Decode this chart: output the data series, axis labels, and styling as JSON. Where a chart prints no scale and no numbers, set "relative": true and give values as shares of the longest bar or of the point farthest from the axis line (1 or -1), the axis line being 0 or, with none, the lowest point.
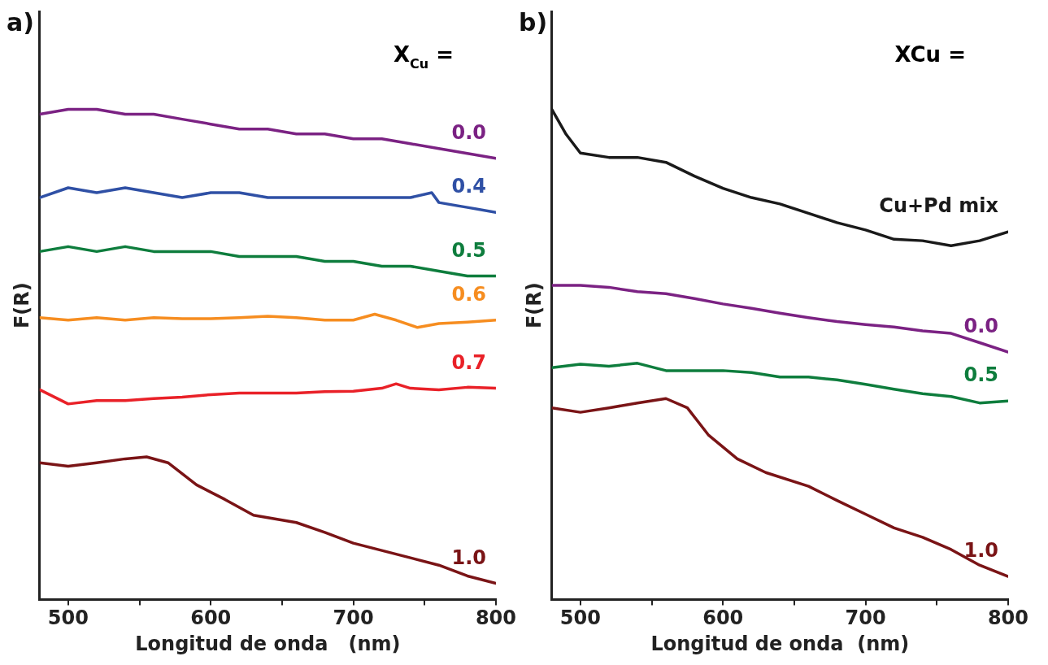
{
  "chart_data": [
    {
      "type": "line",
      "title": "a)",
      "xlabel": "Longitud de onda   (nm)",
      "ylabel": "F(R)",
      "relative": true,
      "grid": false,
      "legend": false,
      "tick_labels": "x",
      "marker": "none",
      "line_style": "solid",
      "xlim": [
        480,
        800
      ],
      "xticks": [
        500,
        {
          "value": 550,
          "label": null
        },
        600,
        {
          "value": 650,
          "label": null
        },
        700,
        {
          "value": 750,
          "label": null
        },
        800
      ],
      "annotations": [
        "X$_{Cu}$ ="
      ],
      "series": [
        {
          "name": "0.0",
          "color": "#7b2283",
          "x": [
            480,
            500,
            520,
            540,
            560,
            580,
            600,
            620,
            640,
            660,
            680,
            700,
            720,
            740,
            760,
            780,
            800
          ],
          "values": [
            0.99,
            1.0,
            1.0,
            0.99,
            0.99,
            0.98,
            0.97,
            0.96,
            0.96,
            0.95,
            0.95,
            0.94,
            0.94,
            0.93,
            0.92,
            0.91,
            0.9
          ]
        },
        {
          "name": "0.4",
          "color": "#2f50a5",
          "x": [
            480,
            500,
            520,
            540,
            560,
            580,
            600,
            620,
            640,
            660,
            680,
            700,
            720,
            740,
            755,
            760,
            780,
            800
          ],
          "values": [
            0.82,
            0.84,
            0.83,
            0.84,
            0.83,
            0.82,
            0.83,
            0.83,
            0.82,
            0.82,
            0.82,
            0.82,
            0.82,
            0.82,
            0.83,
            0.81,
            0.8,
            0.79
          ]
        },
        {
          "name": "0.5",
          "color": "#0e7d3d",
          "x": [
            480,
            500,
            520,
            540,
            560,
            580,
            600,
            620,
            640,
            660,
            680,
            700,
            720,
            740,
            760,
            780,
            800
          ],
          "values": [
            0.71,
            0.72,
            0.71,
            0.72,
            0.71,
            0.71,
            0.71,
            0.7,
            0.7,
            0.7,
            0.69,
            0.69,
            0.68,
            0.68,
            0.67,
            0.66,
            0.66
          ]
        },
        {
          "name": "0.6",
          "color": "#f68d20",
          "x": [
            480,
            500,
            520,
            540,
            560,
            580,
            600,
            620,
            640,
            660,
            680,
            700,
            715,
            730,
            745,
            760,
            780,
            800
          ],
          "values": [
            0.575,
            0.57,
            0.575,
            0.57,
            0.575,
            0.573,
            0.573,
            0.575,
            0.578,
            0.575,
            0.57,
            0.57,
            0.582,
            0.57,
            0.555,
            0.563,
            0.566,
            0.57
          ]
        },
        {
          "name": "0.7",
          "color": "#e92128",
          "x": [
            480,
            500,
            520,
            540,
            560,
            580,
            600,
            620,
            640,
            660,
            680,
            700,
            720,
            730,
            740,
            760,
            780,
            800
          ],
          "values": [
            0.428,
            0.399,
            0.406,
            0.406,
            0.41,
            0.413,
            0.418,
            0.421,
            0.421,
            0.421,
            0.424,
            0.425,
            0.431,
            0.44,
            0.431,
            0.428,
            0.433,
            0.431
          ]
        },
        {
          "name": "1.0",
          "color": "#7a1416",
          "x": [
            480,
            500,
            520,
            540,
            555,
            570,
            590,
            610,
            630,
            660,
            680,
            700,
            720,
            740,
            760,
            780,
            800
          ],
          "values": [
            0.279,
            0.272,
            0.279,
            0.287,
            0.291,
            0.279,
            0.234,
            0.204,
            0.172,
            0.157,
            0.137,
            0.115,
            0.1,
            0.085,
            0.07,
            0.048,
            0.033
          ]
        }
      ]
    },
    {
      "type": "line",
      "title": "b)",
      "xlabel": "Longitud de onda  (nm)",
      "ylabel": "F(R)",
      "relative": true,
      "grid": false,
      "legend": false,
      "tick_labels": "x",
      "marker": "none",
      "line_style": "solid",
      "xlim": [
        480,
        800
      ],
      "xticks": [
        500,
        {
          "value": 550,
          "label": null
        },
        600,
        {
          "value": 650,
          "label": null
        },
        700,
        {
          "value": 750,
          "label": null
        },
        800
      ],
      "annotations": [
        "XCu ="
      ],
      "series": [
        {
          "name": "Cu+Pd mix",
          "color": "#1a1a1a",
          "x": [
            480,
            490,
            500,
            520,
            540,
            560,
            580,
            600,
            620,
            640,
            660,
            680,
            700,
            720,
            740,
            760,
            780,
            800
          ],
          "values": [
            1.0,
            0.949,
            0.911,
            0.902,
            0.902,
            0.892,
            0.864,
            0.839,
            0.82,
            0.807,
            0.788,
            0.769,
            0.754,
            0.735,
            0.732,
            0.722,
            0.732,
            0.75
          ]
        },
        {
          "name": "0.0",
          "color": "#7b2283",
          "x": [
            480,
            500,
            520,
            540,
            560,
            580,
            600,
            620,
            640,
            660,
            680,
            700,
            720,
            740,
            760,
            780,
            800
          ],
          "values": [
            0.641,
            0.641,
            0.637,
            0.628,
            0.624,
            0.614,
            0.603,
            0.594,
            0.584,
            0.575,
            0.567,
            0.561,
            0.556,
            0.548,
            0.543,
            0.524,
            0.505
          ]
        },
        {
          "name": "0.5",
          "color": "#0e7d3d",
          "x": [
            480,
            500,
            520,
            540,
            560,
            580,
            600,
            620,
            640,
            660,
            680,
            700,
            720,
            740,
            760,
            780,
            800
          ],
          "values": [
            0.473,
            0.48,
            0.476,
            0.482,
            0.467,
            0.467,
            0.467,
            0.463,
            0.454,
            0.454,
            0.448,
            0.439,
            0.429,
            0.42,
            0.414,
            0.401,
            0.405
          ]
        },
        {
          "name": "1.0",
          "color": "#7a1416",
          "x": [
            480,
            500,
            520,
            540,
            560,
            575,
            590,
            610,
            630,
            660,
            680,
            700,
            720,
            740,
            760,
            780,
            800
          ],
          "values": [
            0.391,
            0.382,
            0.391,
            0.401,
            0.41,
            0.391,
            0.335,
            0.287,
            0.259,
            0.231,
            0.202,
            0.174,
            0.146,
            0.127,
            0.102,
            0.07,
            0.047
          ]
        }
      ]
    }
  ]
}
